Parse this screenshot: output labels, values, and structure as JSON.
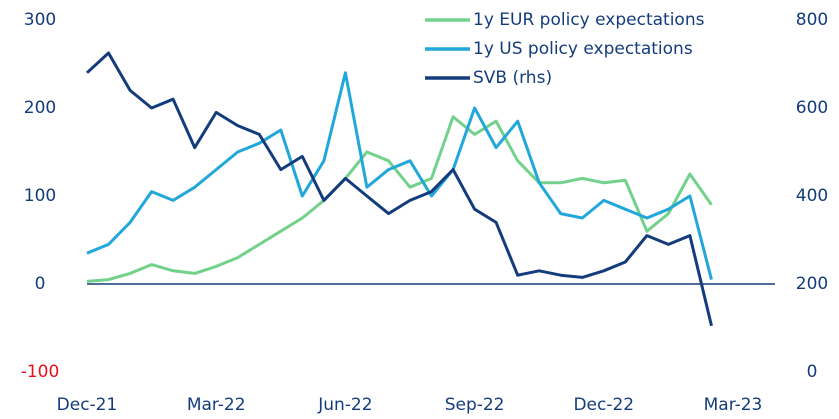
{
  "chart_data": {
    "type": "line",
    "x": [
      0,
      0.5,
      1,
      1.5,
      2,
      2.5,
      3,
      3.5,
      4,
      4.5,
      5,
      5.5,
      6,
      6.5,
      7,
      7.5,
      8,
      8.5,
      9,
      9.5,
      10,
      10.5,
      11,
      11.5,
      12,
      12.5,
      13,
      13.5,
      14,
      14.5
    ],
    "xlim": [
      0,
      15
    ],
    "xticks": [
      {
        "value": 0,
        "label": "Dec-21"
      },
      {
        "value": 3,
        "label": "Mar-22"
      },
      {
        "value": 6,
        "label": "Jun-22"
      },
      {
        "value": 9,
        "label": "Sep-22"
      },
      {
        "value": 12,
        "label": "Dec-22"
      },
      {
        "value": 15,
        "label": "Mar-23"
      }
    ],
    "ylim": [
      -100,
      300
    ],
    "yticks": [
      -100,
      0,
      100,
      200,
      300
    ],
    "y2lim": [
      0,
      800
    ],
    "y2ticks": [
      0,
      200,
      400,
      600,
      800
    ],
    "negative_tick_color": "#e8101a",
    "zero_line": true,
    "legend": "top-right",
    "series": [
      {
        "name": "1y EUR policy expectations",
        "color": "#72d18a",
        "values": [
          3,
          5,
          12,
          22,
          15,
          12,
          20,
          30,
          45,
          60,
          75,
          95,
          120,
          150,
          140,
          110,
          120,
          190,
          170,
          185,
          140,
          115,
          115,
          120,
          115,
          118,
          60,
          80,
          125,
          90
        ]
      },
      {
        "name": "1y US policy expectations",
        "color": "#22a7da",
        "values": [
          35,
          45,
          70,
          105,
          95,
          110,
          130,
          150,
          160,
          175,
          100,
          140,
          240,
          110,
          130,
          140,
          100,
          130,
          200,
          155,
          185,
          115,
          80,
          75,
          95,
          85,
          75,
          85,
          100,
          5
        ]
      },
      {
        "name": "SVB (rhs)",
        "color": "#143c7c",
        "axis": "y2",
        "values": [
          680,
          725,
          640,
          600,
          620,
          510,
          590,
          560,
          540,
          460,
          490,
          390,
          440,
          400,
          360,
          390,
          410,
          460,
          370,
          340,
          220,
          230,
          220,
          215,
          230,
          250,
          310,
          290,
          310,
          105
        ]
      }
    ]
  }
}
